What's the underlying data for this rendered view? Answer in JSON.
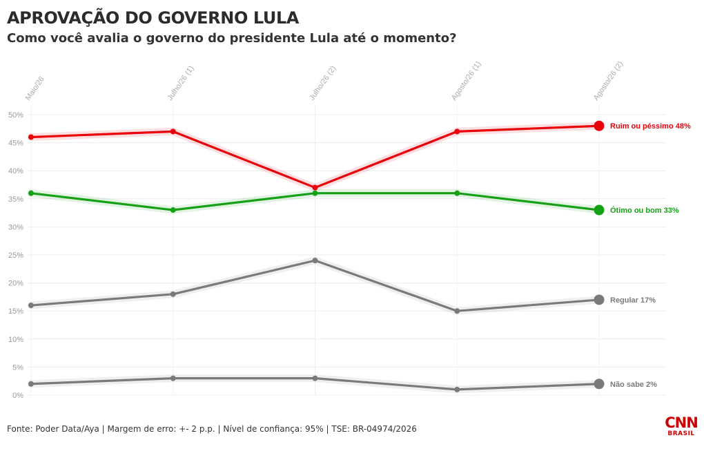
{
  "header": {
    "title": "APROVAÇÃO DO GOVERNO LULA",
    "subtitle": "Como você avalia o governo do presidente Lula até o momento?"
  },
  "chart_data": {
    "type": "line",
    "categories": [
      "Maio/26",
      "Julho/26 (1)",
      "Julho/26 (2)",
      "Agosto/26 (1)",
      "Agosto/26 (2)"
    ],
    "ylim": [
      0,
      50
    ],
    "yticks": [
      0,
      5,
      10,
      15,
      20,
      25,
      30,
      35,
      40,
      45,
      50
    ],
    "ytick_labels": [
      "0%",
      "5%",
      "10%",
      "15%",
      "20%",
      "25%",
      "30%",
      "35%",
      "40%",
      "45%",
      "50%"
    ],
    "grid": true,
    "legend": "end-of-line labels",
    "series": [
      {
        "name": "Ruim ou péssimo",
        "end_label": "Ruim ou péssimo 48%",
        "color": "#e8000b",
        "values": [
          46,
          47,
          37,
          47,
          48
        ]
      },
      {
        "name": "Ótimo ou bom",
        "end_label": "Ótimo ou bom 33%",
        "color": "#16a016",
        "values": [
          36,
          33,
          36,
          36,
          33
        ]
      },
      {
        "name": "Regular",
        "end_label": "Regular 17%",
        "color": "#7a7a7a",
        "values": [
          16,
          18,
          24,
          15,
          17
        ]
      },
      {
        "name": "Não sabe",
        "end_label": "Não sabe 2%",
        "color": "#7a7a7a",
        "values": [
          2,
          3,
          3,
          1,
          2
        ]
      }
    ]
  },
  "footer": {
    "source": "Fonte: Poder Data/Aya | Margem de erro: +- 2 p.p. | Nível de confiança: 95% | TSE: BR-04974/2026"
  },
  "logo": {
    "main": "CNN",
    "sub": "BRASIL"
  }
}
